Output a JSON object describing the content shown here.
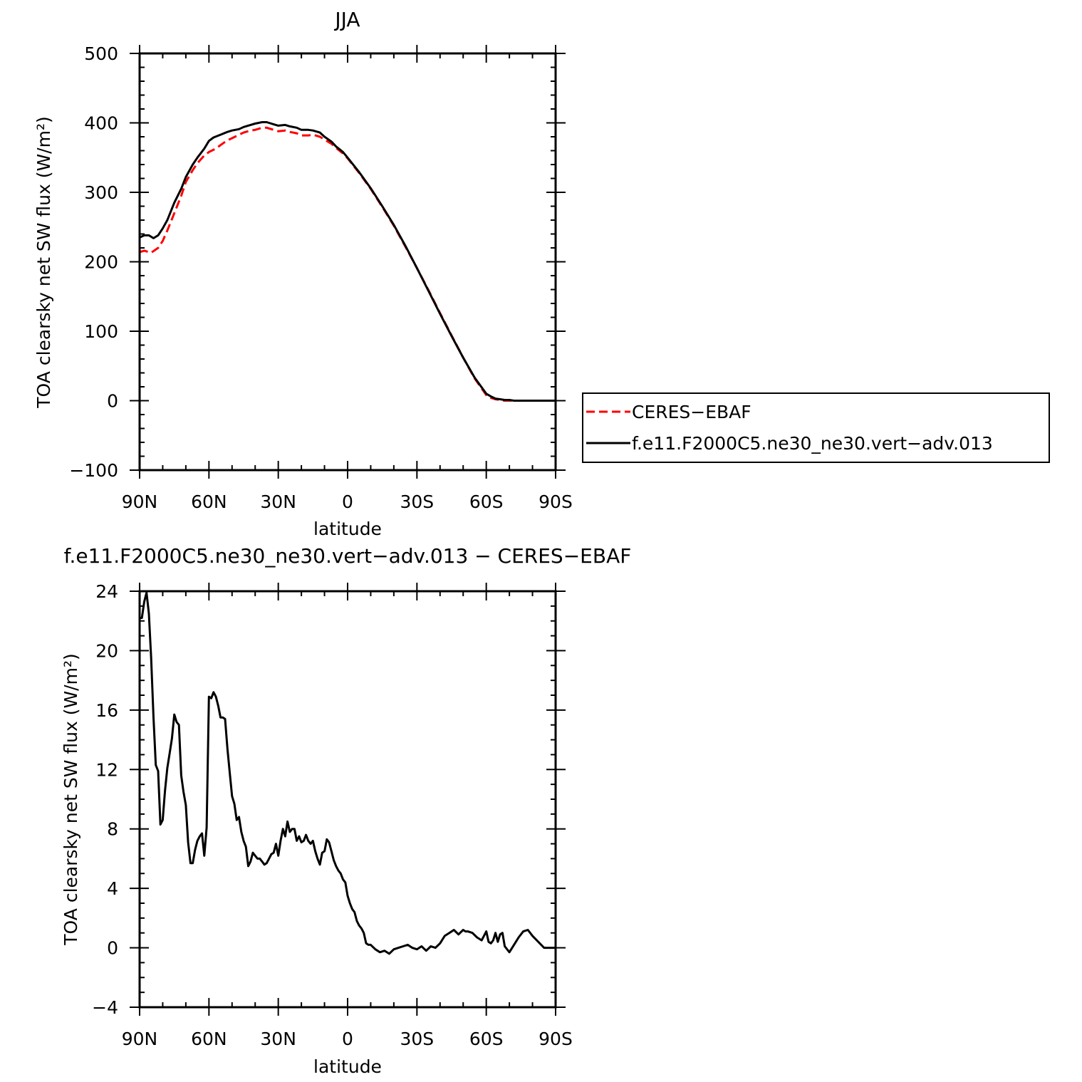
{
  "chart_data": [
    {
      "type": "line",
      "title": "JJA",
      "xlabel": "latitude",
      "ylabel": "TOA clearsky net SW flux (W/m²)",
      "xlim": [
        90,
        -90
      ],
      "ylim": [
        -100,
        500
      ],
      "x_tick_values": [
        90,
        60,
        30,
        0,
        -30,
        -60,
        -90
      ],
      "x_tick_labels": [
        "90N",
        "60N",
        "30N",
        "0",
        "30S",
        "60S",
        "90S"
      ],
      "y_tick_values": [
        -100,
        0,
        100,
        200,
        300,
        400,
        500
      ],
      "y_tick_labels": [
        "−100",
        "0",
        "100",
        "200",
        "300",
        "400",
        "500"
      ],
      "legend_position": "right",
      "series": [
        {
          "name": "CERES−EBAF",
          "color": "#ff0000",
          "dash": "dashed",
          "x": [
            90,
            88,
            85,
            82,
            80,
            78,
            75,
            72,
            70,
            67,
            65,
            62,
            60,
            57,
            55,
            52,
            50,
            47,
            45,
            42,
            40,
            37,
            35,
            32,
            30,
            27,
            25,
            22,
            20,
            17,
            15,
            12,
            10,
            7,
            5,
            2,
            0,
            -5,
            -10,
            -15,
            -20,
            -25,
            -30,
            -35,
            -40,
            -45,
            -50,
            -55,
            -60,
            -62,
            -64,
            -66,
            -68,
            -70,
            -72,
            -75,
            -80,
            -85,
            -90
          ],
          "y": [
            214,
            216,
            213,
            220,
            230,
            245,
            270,
            295,
            315,
            332,
            342,
            353,
            358,
            363,
            368,
            375,
            378,
            383,
            386,
            389,
            390,
            393,
            393,
            390,
            388,
            389,
            387,
            385,
            382,
            382,
            383,
            380,
            376,
            370,
            364,
            356,
            349,
            328,
            305,
            279,
            252,
            222,
            191,
            159,
            126,
            94,
            62,
            32,
            8,
            4,
            2,
            1,
            0,
            0,
            0,
            0,
            0,
            0,
            0
          ]
        },
        {
          "name": "f.e11.F2000C5.ne30_ne30.vert−adv.013",
          "color": "#000000",
          "dash": "solid",
          "x": [
            90,
            88,
            86,
            84,
            82,
            80,
            78,
            75,
            72,
            70,
            67,
            65,
            62,
            60,
            58,
            55,
            52,
            50,
            47,
            45,
            42,
            40,
            37,
            35,
            33,
            30,
            27,
            25,
            22,
            20,
            17,
            15,
            12,
            10,
            7,
            5,
            2,
            0,
            -5,
            -10,
            -15,
            -20,
            -25,
            -30,
            -35,
            -40,
            -45,
            -50,
            -55,
            -60,
            -62,
            -64,
            -66,
            -68,
            -70,
            -72,
            -75,
            -80,
            -85,
            -90
          ],
          "y": [
            235,
            238,
            238,
            234,
            238,
            248,
            260,
            285,
            305,
            322,
            340,
            350,
            363,
            374,
            379,
            383,
            387,
            389,
            391,
            394,
            397,
            399,
            401,
            401,
            399,
            396,
            397,
            395,
            393,
            390,
            390,
            389,
            386,
            380,
            373,
            366,
            358,
            350,
            329,
            306,
            280,
            253,
            223,
            191,
            158,
            125,
            93,
            62,
            33,
            10,
            6,
            3,
            2,
            1,
            1,
            0,
            0,
            0,
            0,
            0
          ]
        }
      ]
    },
    {
      "type": "line",
      "title": "f.e11.F2000C5.ne30_ne30.vert−adv.013 − CERES−EBAF",
      "xlabel": "latitude",
      "ylabel": "TOA clearsky net SW flux (W/m²)",
      "xlim": [
        90,
        -90
      ],
      "ylim": [
        -4,
        24
      ],
      "x_tick_values": [
        90,
        60,
        30,
        0,
        -30,
        -60,
        -90
      ],
      "x_tick_labels": [
        "90N",
        "60N",
        "30N",
        "0",
        "30S",
        "60S",
        "90S"
      ],
      "y_tick_values": [
        -4,
        0,
        4,
        8,
        12,
        16,
        20,
        24
      ],
      "y_tick_labels": [
        "−4",
        "0",
        "4",
        "8",
        "12",
        "16",
        "20",
        "24"
      ],
      "series": [
        {
          "name": "",
          "color": "#000000",
          "dash": "solid",
          "x": [
            90,
            89,
            88,
            87,
            86,
            85,
            84,
            83,
            82,
            81,
            80,
            79,
            78,
            77,
            76,
            75,
            74,
            73,
            72,
            71,
            70,
            69,
            68,
            67,
            66,
            65,
            64,
            63,
            62,
            61,
            60,
            59,
            58,
            57,
            56,
            55,
            54,
            53,
            52,
            51,
            50,
            49,
            48,
            47,
            46,
            45,
            44,
            43,
            42,
            41,
            40,
            39,
            38,
            37,
            36,
            35,
            34,
            33,
            32,
            31,
            30,
            29,
            28,
            27,
            26,
            25,
            24,
            23,
            22,
            21,
            20,
            19,
            18,
            17,
            16,
            15,
            14,
            13,
            12,
            11,
            10,
            9,
            8,
            7,
            6,
            5,
            4,
            3,
            2,
            1,
            0,
            -1,
            -2,
            -3,
            -4,
            -5,
            -6,
            -7,
            -8,
            -9,
            -10,
            -12,
            -14,
            -16,
            -18,
            -20,
            -22,
            -24,
            -26,
            -28,
            -30,
            -32,
            -34,
            -36,
            -38,
            -40,
            -42,
            -44,
            -46,
            -48,
            -50,
            -51,
            -52,
            -54,
            -56,
            -58,
            -60,
            -61,
            -62,
            -63,
            -64,
            -65,
            -66,
            -67,
            -68,
            -70,
            -72,
            -74,
            -76,
            -78,
            -80,
            -85,
            -90
          ],
          "y": [
            22.2,
            22.2,
            23.3,
            23.9,
            22.5,
            19.5,
            15.5,
            12.3,
            11.9,
            8.3,
            8.6,
            10.6,
            12.1,
            13.1,
            14.1,
            15.7,
            15.2,
            15.0,
            11.6,
            10.5,
            9.6,
            7.1,
            5.7,
            5.7,
            6.6,
            7.2,
            7.5,
            7.7,
            6.2,
            8.1,
            16.9,
            16.8,
            17.2,
            16.9,
            16.3,
            15.5,
            15.5,
            15.4,
            13.4,
            11.8,
            10.2,
            9.7,
            8.6,
            8.8,
            7.8,
            7.2,
            6.8,
            5.5,
            5.8,
            6.4,
            6.2,
            6.0,
            6.0,
            5.8,
            5.6,
            5.7,
            6.0,
            6.3,
            6.4,
            7.0,
            6.2,
            7.2,
            8.0,
            7.5,
            8.5,
            7.8,
            8.0,
            8.0,
            7.2,
            7.5,
            7.1,
            7.2,
            7.6,
            7.2,
            7.0,
            7.2,
            6.5,
            6.0,
            5.6,
            6.4,
            6.5,
            7.3,
            7.1,
            6.5,
            5.9,
            5.5,
            5.2,
            5.0,
            4.6,
            4.4,
            3.5,
            3.0,
            2.6,
            2.4,
            1.8,
            1.5,
            1.3,
            1.0,
            0.3,
            0.2,
            0.2,
            -0.1,
            -0.3,
            -0.2,
            -0.4,
            -0.1,
            0.0,
            0.1,
            0.2,
            0.0,
            -0.1,
            0.1,
            -0.2,
            0.1,
            0.0,
            0.3,
            0.8,
            1.0,
            1.2,
            0.9,
            1.2,
            1.1,
            1.1,
            1.0,
            0.7,
            0.5,
            1.1,
            0.4,
            0.3,
            0.5,
            1.0,
            0.4,
            0.9,
            1.0,
            0.1,
            -0.3,
            0.2,
            0.7,
            1.1,
            1.2,
            0.8,
            0.0,
            0.0
          ]
        }
      ]
    }
  ]
}
